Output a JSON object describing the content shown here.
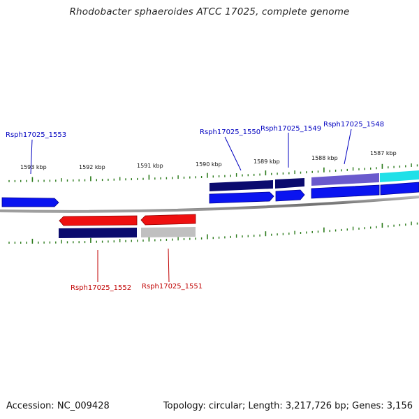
{
  "title": "Rhodobacter sphaeroides ATCC 17025, complete genome",
  "footer": {
    "accession": "Accession: NC_009428",
    "summary": "Topology: circular; Length: 3,217,726 bp; Genes: 3,156"
  },
  "ruler": {
    "labels": [
      "1593 kbp",
      "1592 kbp",
      "1591 kbp",
      "1590 kbp",
      "1589 kbp",
      "1588 kbp",
      "1587 kbp"
    ]
  },
  "genes": {
    "above": [
      "Rsph17025_1553",
      "Rsph17025_1550",
      "Rsph17025_1549",
      "Rsph17025_1548"
    ],
    "below": [
      "Rsph17025_1552",
      "Rsph17025_1551"
    ]
  },
  "colors": {
    "forward_label": "#0000c0",
    "reverse_label": "#c00000",
    "tick": "#2a7a1a",
    "backbone": "#808080"
  }
}
